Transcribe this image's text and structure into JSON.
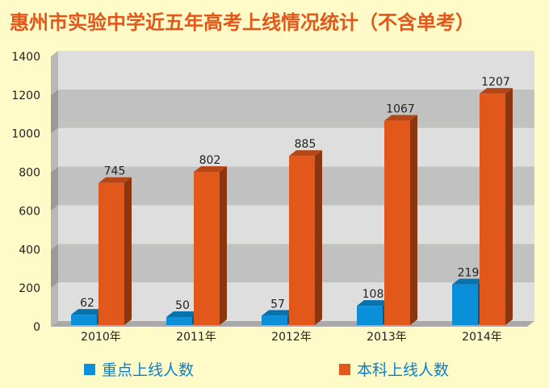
{
  "chart_data": {
    "type": "bar",
    "title": "惠州市实验中学近五年高考上线情况统计（不含单考）",
    "categories": [
      "2010年",
      "2011年",
      "2012年",
      "2013年",
      "2014年"
    ],
    "series": [
      {
        "name": "重点上线人数",
        "color": "#0a8fd8",
        "values": [
          62,
          50,
          57,
          108,
          219
        ]
      },
      {
        "name": "本科上线人数",
        "color": "#e2571a",
        "values": [
          745,
          802,
          885,
          1067,
          1207
        ]
      }
    ],
    "yticks": [
      "0",
      "200",
      "400",
      "600",
      "800",
      "1000",
      "1200",
      "1400"
    ],
    "ylim": [
      0,
      1400
    ],
    "xlabel": "",
    "ylabel": "",
    "legend_position": "bottom"
  }
}
